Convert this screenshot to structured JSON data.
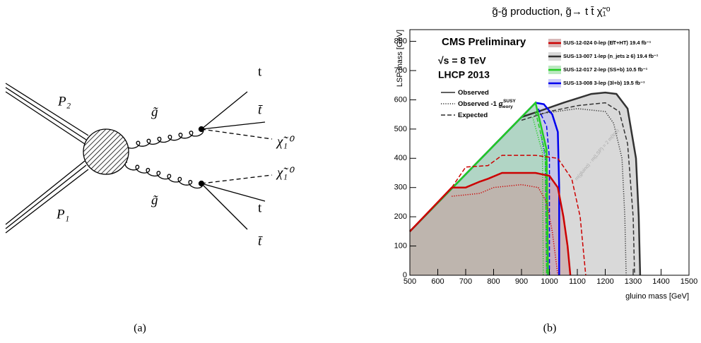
{
  "diagram": {
    "labels": {
      "p2": "P₂",
      "p1": "P₁",
      "gluino_top": "g̃",
      "gluino_bottom": "g̃",
      "t_top": "t",
      "tbar_top": "t̄",
      "chi_top": "χ̃₁⁰",
      "chi_bottom": "χ̃₁⁰",
      "t_bottom": "t",
      "tbar_bottom": "t̄"
    },
    "caption": "(a)"
  },
  "chart_data": {
    "type": "line",
    "title": "g̃-g̃ production, g̃→ t t̄ χ̃₁⁰",
    "x_label": "gluino mass [GeV]",
    "y_label": "LSP mass [GeV]",
    "caption": "(b)",
    "xlim": [
      500,
      1500
    ],
    "ylim": [
      0,
      840
    ],
    "xticks": [
      500,
      600,
      700,
      800,
      900,
      1000,
      1100,
      1200,
      1300,
      1400,
      1500
    ],
    "yticks": [
      0,
      100,
      200,
      300,
      400,
      500,
      600,
      700,
      800
    ],
    "annotations": [
      "CMS Preliminary",
      "√s = 8 TeV",
      "LHCP 2013",
      "m(gluino) - m(LSP) = 2 m(top)"
    ],
    "line_styles": [
      {
        "label": "Observed",
        "style": "solid"
      },
      {
        "label": "Observed -1 σ",
        "sup": "SUSY",
        "sub": "theory",
        "style": "dotted"
      },
      {
        "label": "Expected",
        "style": "dashed"
      }
    ],
    "series": [
      {
        "name": "SUS-13-007 1-lep (n_jets ≥ 6) 19.4 fb⁻¹",
        "color": "#333333",
        "fill": "#d9d9d9",
        "contours": [
          {
            "style": "solid",
            "x": [
              500,
              900,
              960,
              1050,
              1150,
              1200,
              1240,
              1280,
              1310,
              1320,
              1325
            ],
            "y": [
              150,
              541,
              560,
              590,
              620,
              625,
              620,
              570,
              400,
              200,
              0
            ]
          },
          {
            "style": "dashed",
            "x": [
              900,
              1000,
              1100,
              1200,
              1250,
              1280,
              1300,
              1305
            ],
            "y": [
              530,
              560,
              580,
              590,
              560,
              450,
              200,
              0
            ]
          },
          {
            "style": "dotted",
            "x": [
              950,
              1100,
              1200,
              1230,
              1260,
              1270,
              1275
            ],
            "y": [
              550,
              570,
              560,
              520,
              400,
              200,
              0
            ]
          }
        ]
      },
      {
        "name": "SUS-13-008 3-lep (3l+b) 19.5 fb⁻¹",
        "color": "#0000ee",
        "fill": "#b8b8f4",
        "contours": [
          {
            "style": "solid",
            "x": [
              500,
              950,
              980,
              1010,
              1030,
              1035,
              1035
            ],
            "y": [
              150,
              590,
              585,
              550,
              490,
              300,
              0
            ]
          },
          {
            "style": "dashed",
            "x": [
              960,
              990,
              1000,
              1000
            ],
            "y": [
              570,
              510,
              400,
              0
            ]
          },
          {
            "style": "dotted",
            "x": [
              970,
              985,
              990
            ],
            "y": [
              480,
              400,
              0
            ]
          }
        ]
      },
      {
        "name": "SUS-12-017 2-lep (SS+b) 10.5 fb⁻¹",
        "color": "#22cc22",
        "fill": "#9fe0a8",
        "contours": [
          {
            "style": "solid",
            "x": [
              500,
              950,
              990,
              995
            ],
            "y": [
              150,
              590,
              430,
              0
            ]
          },
          {
            "style": "dashed",
            "x": [
              950,
              985,
              990
            ],
            "y": [
              560,
              420,
              0
            ]
          },
          {
            "style": "dotted",
            "x": [
              940,
              975,
              978
            ],
            "y": [
              540,
              420,
              0
            ]
          }
        ]
      },
      {
        "name": "SUS-12-024 0-lep (E̸T+HT) 19.4 fb⁻¹",
        "color": "#cc0000",
        "fill": "#c89a9a",
        "contours": [
          {
            "style": "solid",
            "x": [
              500,
              650,
              700,
              750,
              780,
              830,
              950,
              1000,
              1030,
              1050,
              1065,
              1075
            ],
            "y": [
              150,
              300,
              300,
              320,
              330,
              350,
              350,
              340,
              300,
              200,
              100,
              0
            ]
          },
          {
            "style": "dashed",
            "x": [
              650,
              700,
              780,
              830,
              950,
              1030,
              1080,
              1110,
              1125,
              1130
            ],
            "y": [
              300,
              370,
              375,
              410,
              410,
              400,
              330,
              200,
              50,
              0
            ]
          },
          {
            "style": "dotted",
            "x": [
              650,
              750,
              800,
              900,
              960,
              990,
              1010,
              1030
            ],
            "y": [
              270,
              280,
              300,
              310,
              300,
              250,
              150,
              0
            ]
          }
        ]
      }
    ],
    "legend_order": [
      3,
      0,
      2,
      1
    ]
  }
}
